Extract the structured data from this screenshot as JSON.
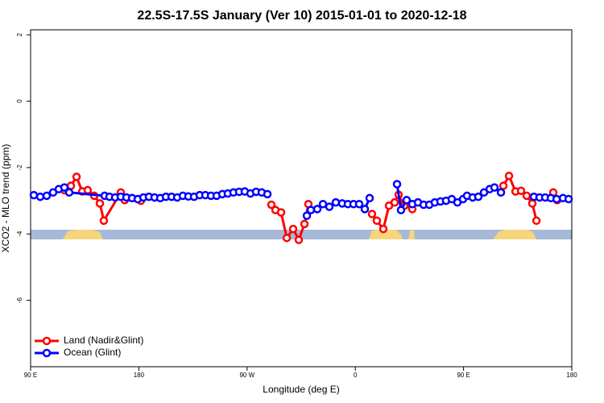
{
  "chart_data": {
    "type": "line",
    "title": "22.5S-17.5S January (Ver 10)   2015-01-01 to 2020-12-18",
    "x_label": "Longitude (deg E)",
    "y_label": "XCO2 - MLO trend (ppm)",
    "xlim": [
      90,
      540
    ],
    "xticks": [
      {
        "value": 90,
        "label": "90 E"
      },
      180,
      {
        "value": 270,
        "label": "90 W"
      },
      {
        "value": 360,
        "label": "0"
      },
      {
        "value": 450,
        "label": "90 E"
      },
      {
        "value": 540,
        "label": "180"
      }
    ],
    "ylim": [
      -8,
      2.15
    ],
    "yticks": [
      -6,
      -4,
      -2,
      0,
      2
    ],
    "legend": "bottom-left",
    "series": [
      {
        "name": "Land (Nadir&Glint)",
        "color": "#ff0000",
        "x": [
          118.1,
          123.5,
          128.2,
          132.9,
          137.5,
          142.9,
          147.6,
          150.9,
          165.0,
          168.3,
          181.7,
          null,
          290.2,
          293.6,
          298.3,
          303.0,
          308.3,
          313.0,
          317.7,
          321.0,
          null,
          373.9,
          377.9,
          383.3,
          388.0,
          392.7,
          396.0,
          400.7,
          407.4,
          null,
          483.1,
          487.8,
          493.2,
          497.8,
          502.5,
          507.2,
          510.6,
          null,
          524.6,
          527.9
        ],
        "values": [
          -2.68,
          -2.55,
          -2.28,
          -2.72,
          -2.68,
          -2.85,
          -3.08,
          -3.6,
          -2.75,
          -2.98,
          -3.0,
          null,
          -3.12,
          -3.28,
          -3.35,
          -4.12,
          -3.85,
          -4.18,
          -3.7,
          -3.1,
          null,
          -3.4,
          -3.6,
          -3.85,
          -3.15,
          -3.05,
          -2.82,
          -3.15,
          -3.25,
          null,
          -2.55,
          -2.25,
          -2.72,
          -2.7,
          -2.85,
          -3.08,
          -3.6,
          null,
          -2.75,
          -2.98
        ]
      },
      {
        "name": "Ocean (Glint)",
        "color": "#0000ff",
        "x": [
          92.7,
          98.0,
          103.4,
          108.7,
          113.4,
          118.1,
          122.1,
          151.6,
          155.6,
          160.3,
          165.0,
          169.7,
          174.4,
          179.1,
          183.8,
          188.4,
          193.1,
          197.8,
          202.5,
          207.2,
          211.9,
          216.6,
          221.2,
          225.9,
          230.6,
          235.3,
          240.0,
          244.7,
          249.4,
          254.0,
          258.7,
          263.4,
          268.1,
          272.8,
          277.5,
          282.2,
          286.9,
          null,
          319.7,
          323.0,
          328.4,
          333.1,
          338.4,
          343.8,
          349.1,
          353.8,
          358.5,
          363.2,
          367.9,
          371.9,
          null,
          394.7,
          398.0,
          402.7,
          407.4,
          412.1,
          416.8,
          421.5,
          426.1,
          430.8,
          435.5,
          440.2,
          444.9,
          449.6,
          452.9,
          457.6,
          462.3,
          467.0,
          471.7,
          475.7,
          481.1,
          null,
          508.5,
          513.2,
          517.9,
          522.6,
          527.4,
          532.7,
          537.4
        ],
        "values": [
          -2.83,
          -2.88,
          -2.85,
          -2.75,
          -2.65,
          -2.6,
          -2.75,
          -2.85,
          -2.88,
          -2.9,
          -2.88,
          -2.9,
          -2.92,
          -2.95,
          -2.9,
          -2.88,
          -2.9,
          -2.92,
          -2.88,
          -2.88,
          -2.9,
          -2.85,
          -2.87,
          -2.88,
          -2.83,
          -2.83,
          -2.85,
          -2.85,
          -2.8,
          -2.78,
          -2.75,
          -2.73,
          -2.72,
          -2.78,
          -2.73,
          -2.75,
          -2.8,
          null,
          -3.45,
          -3.28,
          -3.25,
          -3.1,
          -3.18,
          -3.05,
          -3.08,
          -3.1,
          -3.1,
          -3.1,
          -3.25,
          -2.92,
          null,
          -2.5,
          -3.28,
          -2.98,
          -3.1,
          -3.05,
          -3.12,
          -3.12,
          -3.05,
          -3.02,
          -3.0,
          -2.95,
          -3.05,
          -2.95,
          -2.85,
          -2.9,
          -2.88,
          -2.75,
          -2.65,
          -2.6,
          -2.75,
          null,
          -2.88,
          -2.9,
          -2.9,
          -2.92,
          -2.95,
          -2.92,
          -2.95
        ]
      }
    ]
  }
}
